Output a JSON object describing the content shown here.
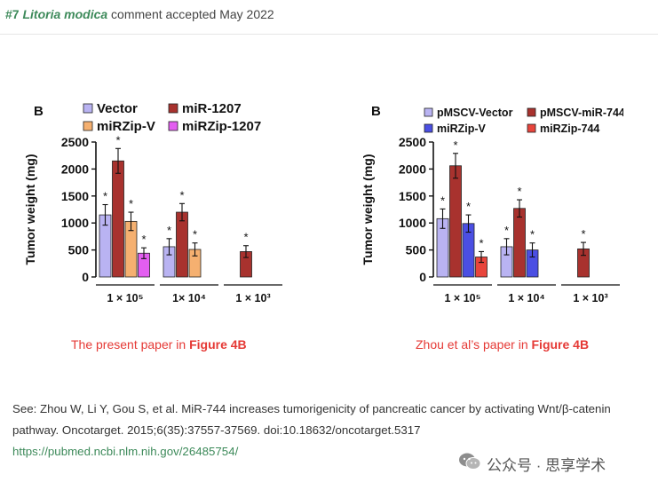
{
  "header": {
    "tag": "#7",
    "species": "Litoria modica",
    "status": "comment accepted May 2022"
  },
  "figures": [
    {
      "panel": "B",
      "legend": [
        "Vector",
        "miR-1207",
        "miRZip-V",
        "miRZip-1207"
      ],
      "caption_prefix": "The present paper in ",
      "caption_emph": "Figure 4B"
    },
    {
      "panel": "B",
      "legend": [
        "pMSCV-Vector",
        "pMSCV-miR-744",
        "miRZip-V",
        "miRZip-744"
      ],
      "caption_prefix": "Zhou et al’s paper in ",
      "caption_emph": "Figure 4B"
    }
  ],
  "chart_data": [
    {
      "type": "bar",
      "title": "B",
      "ylabel": "Tumor weight (mg)",
      "ylim": [
        0,
        2500
      ],
      "yticks": [
        0,
        500,
        1000,
        1500,
        2000,
        2500
      ],
      "categories": [
        "1 × 10⁵",
        "1×  10⁴",
        "1 × 10³"
      ],
      "series": [
        {
          "name": "Vector",
          "color": "#b9b3f2",
          "values": [
            1150,
            560,
            null
          ],
          "errors": [
            190,
            150,
            null
          ],
          "sig": [
            true,
            true,
            false
          ]
        },
        {
          "name": "miR-1207",
          "color": "#a8322e",
          "values": [
            2150,
            1200,
            470
          ],
          "errors": [
            230,
            160,
            110
          ],
          "sig": [
            true,
            true,
            true
          ]
        },
        {
          "name": "miRZip-V",
          "color": "#f5b070",
          "values": [
            1030,
            510,
            null
          ],
          "errors": [
            170,
            120,
            null
          ],
          "sig": [
            true,
            true,
            false
          ]
        },
        {
          "name": "miRZip-1207",
          "color": "#e35ef0",
          "values": [
            440,
            null,
            null
          ],
          "errors": [
            100,
            null,
            null
          ],
          "sig": [
            true,
            false,
            false
          ]
        }
      ]
    },
    {
      "type": "bar",
      "title": "B",
      "ylabel": "Tumor weight (mg)",
      "ylim": [
        0,
        2500
      ],
      "yticks": [
        0,
        500,
        1000,
        1500,
        2000,
        2500
      ],
      "categories": [
        "1 × 10⁵",
        "1 × 10⁴",
        "1 × 10³"
      ],
      "series": [
        {
          "name": "pMSCV-Vector",
          "color": "#b9b3f2",
          "values": [
            1080,
            560,
            null
          ],
          "errors": [
            180,
            150,
            null
          ],
          "sig": [
            true,
            true,
            false
          ]
        },
        {
          "name": "pMSCV-miR-744",
          "color": "#a8322e",
          "values": [
            2060,
            1270,
            520
          ],
          "errors": [
            230,
            160,
            120
          ],
          "sig": [
            true,
            true,
            true
          ]
        },
        {
          "name": "miRZip-V",
          "color": "#4b4fe3",
          "values": [
            990,
            500,
            null
          ],
          "errors": [
            160,
            130,
            null
          ],
          "sig": [
            true,
            true,
            false
          ]
        },
        {
          "name": "miRZip-744",
          "color": "#e8453c",
          "values": [
            370,
            null,
            null
          ],
          "errors": [
            100,
            null,
            null
          ],
          "sig": [
            true,
            false,
            false
          ]
        }
      ]
    }
  ],
  "reference": {
    "text": "See: Zhou W, Li Y, Gou S, et al. MiR-744 increases tumorigenicity of pancreatic cancer by activating Wnt/β-catenin pathway. Oncotarget. 2015;6(35):37557-37569. doi:10.18632/oncotarget.5317",
    "link": "https://pubmed.ncbi.nlm.nih.gov/26485754/"
  },
  "watermark": {
    "text": "公众号 · 思享学术",
    "icon": "wechat-icon"
  }
}
